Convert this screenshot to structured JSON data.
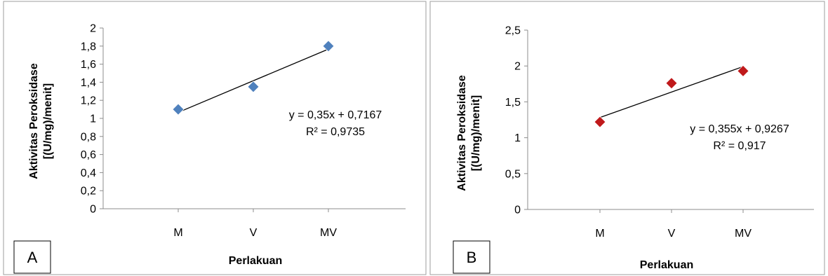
{
  "chart_data": [
    {
      "type": "scatter",
      "panel_label": "A",
      "categories": [
        "M",
        "V",
        "MV"
      ],
      "x": [
        1,
        2,
        3
      ],
      "y": [
        1.1,
        1.35,
        1.8
      ],
      "ylim": [
        0,
        2
      ],
      "ytick_step": 0.2,
      "yticks": [
        "0",
        "0,2",
        "0,4",
        "0,6",
        "0,8",
        "1",
        "1,2",
        "1,4",
        "1,6",
        "1,8",
        "2"
      ],
      "xlabel": "Perlakuan",
      "ylabel_line1": "Aktivitas Peroksidase",
      "ylabel_line2": "[(U/mg)/menit]",
      "marker_color": "#4f81bd",
      "marker_shape": "diamond",
      "trendline": {
        "slope": 0.35,
        "intercept": 0.7167
      },
      "equation": "y = 0,35x + 0,7167",
      "r_squared": "R² = 0,9735",
      "grid": false
    },
    {
      "type": "scatter",
      "panel_label": "B",
      "categories": [
        "M",
        "V",
        "MV"
      ],
      "x": [
        1,
        2,
        3
      ],
      "y": [
        1.22,
        1.76,
        1.93
      ],
      "ylim": [
        0,
        2.5
      ],
      "ytick_step": 0.5,
      "yticks": [
        "0",
        "0,5",
        "1",
        "1,5",
        "2",
        "2,5"
      ],
      "xlabel": "Perlakuan",
      "ylabel_line1": "Aktivitas Peroksidase",
      "ylabel_line2": "[(U/mg)/menit]",
      "marker_color": "#c0191b",
      "marker_shape": "diamond",
      "trendline": {
        "slope": 0.355,
        "intercept": 0.9267
      },
      "equation": "y = 0,355x + 0,9267",
      "r_squared": "R² = 0,917",
      "grid": false
    }
  ]
}
